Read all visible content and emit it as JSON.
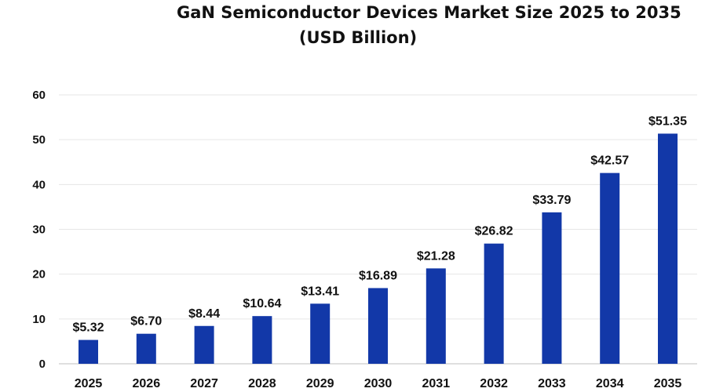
{
  "chart_data": {
    "type": "bar",
    "title_line1": "GaN Semiconductor Devices Market Size 2025 to 2035",
    "title_line2": "(USD Billion)",
    "categories": [
      "2025",
      "2026",
      "2027",
      "2028",
      "2029",
      "2030",
      "2031",
      "2032",
      "2033",
      "2034",
      "2035"
    ],
    "values": [
      5.32,
      6.7,
      8.44,
      10.64,
      13.41,
      16.89,
      21.28,
      26.82,
      33.79,
      42.57,
      51.35
    ],
    "data_labels": [
      "$5.32",
      "$6.70",
      "$8.44",
      "$10.64",
      "$13.41",
      "$16.89",
      "$21.28",
      "$26.82",
      "$33.79",
      "$42.57",
      "$51.35"
    ],
    "y_ticks": [
      "0",
      "10",
      "20",
      "30",
      "40",
      "50",
      "60"
    ],
    "ylim": [
      0,
      60
    ],
    "xlabel": "",
    "ylabel": "",
    "grid": true,
    "bar_color": "#1238a8",
    "grid_color": "#e6e6e6"
  }
}
